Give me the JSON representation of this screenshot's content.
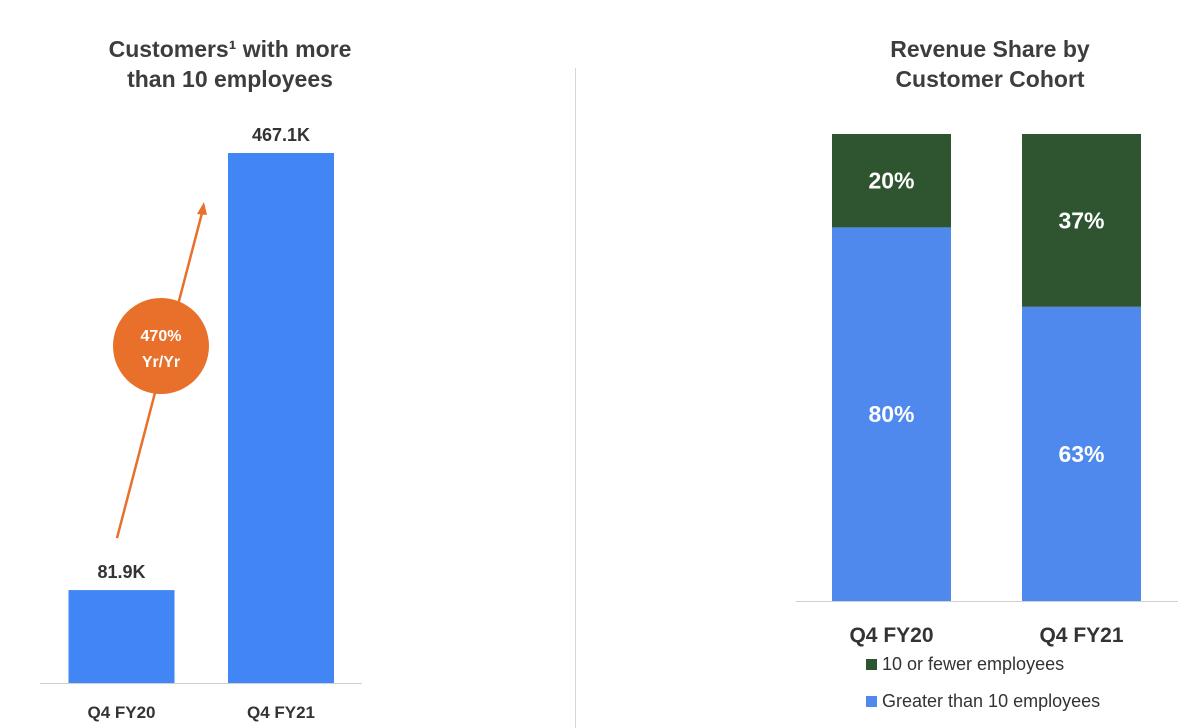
{
  "chart_data": [
    {
      "type": "bar",
      "title_lines": [
        "Customers¹ with more",
        "than 10 employees"
      ],
      "categories": [
        "Q4 FY20",
        "Q4 FY21"
      ],
      "values": [
        81.9,
        467.1
      ],
      "value_labels": [
        "81.9K",
        "467.1K"
      ],
      "ylim": [
        0,
        467.1
      ],
      "annotation": {
        "lines": [
          "470%",
          "Yr/Yr"
        ]
      },
      "bar_color": "#4285f4",
      "annotation_color": "#e8702a"
    },
    {
      "type": "bar",
      "stacked": true,
      "title_lines": [
        "Revenue Share by",
        "Customer Cohort"
      ],
      "categories": [
        "Q4 FY20",
        "Q4 FY21"
      ],
      "series": [
        {
          "name": "Greater than 10 employees",
          "values": [
            80,
            63
          ],
          "labels": [
            "80%",
            "63%"
          ],
          "color": "#4f89ee"
        },
        {
          "name": "10 or fewer employees",
          "values": [
            20,
            37
          ],
          "labels": [
            "20%",
            "37%"
          ],
          "color": "#2f5530"
        }
      ],
      "ylim": [
        0,
        100
      ],
      "legend_position": "bottom"
    }
  ]
}
